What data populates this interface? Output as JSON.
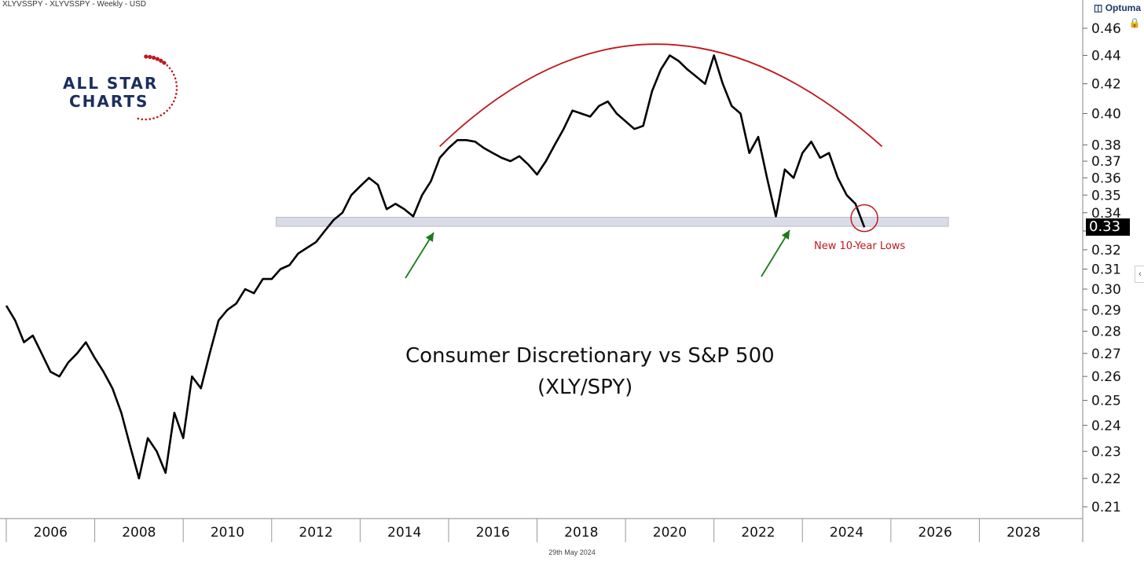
{
  "header": {
    "symbol_text": "XLYVSSPY - XLYVSSPY - Weekly - USD",
    "brand": "Optuma"
  },
  "logo": {
    "line1": "ALL STAR",
    "line2": "CHARTS"
  },
  "footer": {
    "date": "29th May 2024"
  },
  "annotation": {
    "text": "New 10-Year Lows"
  },
  "colors": {
    "line": "#000000",
    "arc": "#c0181d",
    "arrow": "#1a7a1a",
    "band": "#d9dce6",
    "logo_navy": "#1b2f5e",
    "logo_red": "#c0181d"
  },
  "chart_data": {
    "type": "line",
    "title": "Consumer Discretionary vs S&P 500",
    "subtitle": "(XLY/SPY)",
    "xlabel": "",
    "ylabel": "",
    "y_scale": "log",
    "ylim": [
      0.205,
      0.465
    ],
    "xlim": [
      2005.0,
      2029.0
    ],
    "grid": false,
    "last_value_label": "0.33",
    "y_ticks": [
      0.21,
      0.22,
      0.23,
      0.24,
      0.25,
      0.26,
      0.27,
      0.28,
      0.29,
      0.3,
      0.31,
      0.32,
      0.33,
      0.34,
      0.35,
      0.36,
      0.37,
      0.38,
      0.4,
      0.42,
      0.44,
      0.46
    ],
    "y_tick_labels": [
      "0.21",
      "0.22",
      "0.23",
      "0.24",
      "0.25",
      "0.26",
      "0.27",
      "0.28",
      "0.29",
      "0.30",
      "0.31",
      "0.32",
      "0.33",
      "0.34",
      "0.35",
      "0.36",
      "0.37",
      "0.38",
      "0.40",
      "0.42",
      "0.44",
      "0.46"
    ],
    "x_ticks": [
      2006,
      2008,
      2010,
      2012,
      2014,
      2016,
      2018,
      2020,
      2022,
      2024,
      2026,
      2028
    ],
    "x_tick_labels": [
      "2006",
      "2008",
      "2010",
      "2012",
      "2014",
      "2016",
      "2018",
      "2020",
      "2022",
      "2024",
      "2026",
      "2028"
    ],
    "support_zone": {
      "from_x": 2011.1,
      "to_x": 2026.3,
      "y_low": 0.3325,
      "y_high": 0.3375
    },
    "series": [
      {
        "x": [
          2005.0,
          2005.2,
          2005.4,
          2005.6,
          2005.8,
          2006.0,
          2006.2,
          2006.4,
          2006.6,
          2006.8,
          2007.0,
          2007.2,
          2007.4,
          2007.6,
          2007.8,
          2008.0,
          2008.2,
          2008.4,
          2008.6,
          2008.8,
          2009.0,
          2009.2,
          2009.4,
          2009.6,
          2009.8,
          2010.0,
          2010.2,
          2010.4,
          2010.6,
          2010.8,
          2011.0,
          2011.2,
          2011.4,
          2011.6,
          2011.8,
          2012.0,
          2012.2,
          2012.4,
          2012.6,
          2012.8,
          2013.0,
          2013.2,
          2013.4,
          2013.6,
          2013.8,
          2014.0,
          2014.2,
          2014.4,
          2014.6,
          2014.8,
          2015.0,
          2015.2,
          2015.4,
          2015.6,
          2015.8,
          2016.0,
          2016.2,
          2016.4,
          2016.6,
          2016.8,
          2017.0,
          2017.2,
          2017.4,
          2017.6,
          2017.8,
          2018.0,
          2018.2,
          2018.4,
          2018.6,
          2018.8,
          2019.0,
          2019.2,
          2019.4,
          2019.6,
          2019.8,
          2020.0,
          2020.2,
          2020.4,
          2020.6,
          2020.8,
          2021.0,
          2021.2,
          2021.4,
          2021.6,
          2021.8,
          2022.0,
          2022.2,
          2022.4,
          2022.6,
          2022.8,
          2023.0,
          2023.2,
          2023.4,
          2023.6,
          2023.8,
          2024.0,
          2024.2,
          2024.4
        ],
        "values": [
          0.292,
          0.285,
          0.275,
          0.278,
          0.27,
          0.262,
          0.26,
          0.266,
          0.27,
          0.275,
          0.268,
          0.262,
          0.255,
          0.245,
          0.232,
          0.22,
          0.235,
          0.23,
          0.222,
          0.245,
          0.235,
          0.26,
          0.255,
          0.27,
          0.285,
          0.29,
          0.293,
          0.3,
          0.298,
          0.305,
          0.305,
          0.31,
          0.312,
          0.318,
          0.321,
          0.324,
          0.33,
          0.336,
          0.34,
          0.35,
          0.355,
          0.36,
          0.356,
          0.342,
          0.345,
          0.342,
          0.338,
          0.35,
          0.358,
          0.372,
          0.378,
          0.383,
          0.383,
          0.382,
          0.378,
          0.375,
          0.372,
          0.37,
          0.373,
          0.368,
          0.362,
          0.37,
          0.38,
          0.39,
          0.402,
          0.4,
          0.398,
          0.405,
          0.408,
          0.4,
          0.395,
          0.39,
          0.392,
          0.415,
          0.43,
          0.44,
          0.436,
          0.43,
          0.425,
          0.42,
          0.44,
          0.42,
          0.405,
          0.4,
          0.375,
          0.385,
          0.36,
          0.338,
          0.365,
          0.36,
          0.375,
          0.382,
          0.372,
          0.375,
          0.36,
          0.35,
          0.345,
          0.332
        ]
      }
    ]
  }
}
